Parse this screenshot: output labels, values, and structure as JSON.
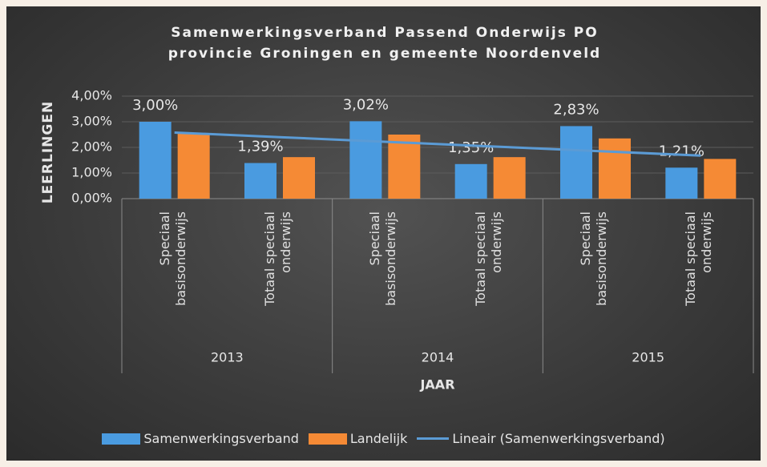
{
  "chart_data": {
    "type": "bar",
    "title": "Samenwerkingsverband Passend Onderwijs PO provincie Groningen en gemeente Noordenveld",
    "y_label": "LEERLINGEN",
    "x_label": "JAAR",
    "categories": [
      "Speciaal basisonderwijs",
      "Totaal speciaal onderwijs",
      "Speciaal basisonderwijs",
      "Totaal speciaal onderwijs",
      "Speciaal basisonderwijs",
      "Totaal speciaal onderwijs"
    ],
    "groups": [
      "2013",
      "2014",
      "2015"
    ],
    "series": [
      {
        "name": "Samenwerkingsverband",
        "type": "bar",
        "color": "#4a9be0",
        "values": [
          3.0,
          1.39,
          3.02,
          1.35,
          2.83,
          1.21
        ],
        "value_labels": [
          "3,00%",
          "1,39%",
          "3,02%",
          "1,35%",
          "2,83%",
          "1,21%"
        ]
      },
      {
        "name": "Landelijk",
        "type": "bar",
        "color": "#f58a35",
        "values": [
          2.55,
          1.62,
          2.5,
          1.62,
          2.35,
          1.55
        ]
      },
      {
        "name": "Lineair (Samenwerkingsverband)",
        "type": "line",
        "color": "#5b9bd5",
        "values": [
          2.58,
          2.4,
          2.22,
          2.04,
          1.86,
          1.68
        ]
      }
    ],
    "ylim": [
      0,
      4
    ],
    "yticks": [
      {
        "value": 0,
        "label": "0,00%"
      },
      {
        "value": 1,
        "label": "1,00%"
      },
      {
        "value": 2,
        "label": "2,00%"
      },
      {
        "value": 3,
        "label": "3,00%"
      },
      {
        "value": 4,
        "label": "4,00%"
      }
    ],
    "grid": true,
    "legend": "bottom"
  }
}
